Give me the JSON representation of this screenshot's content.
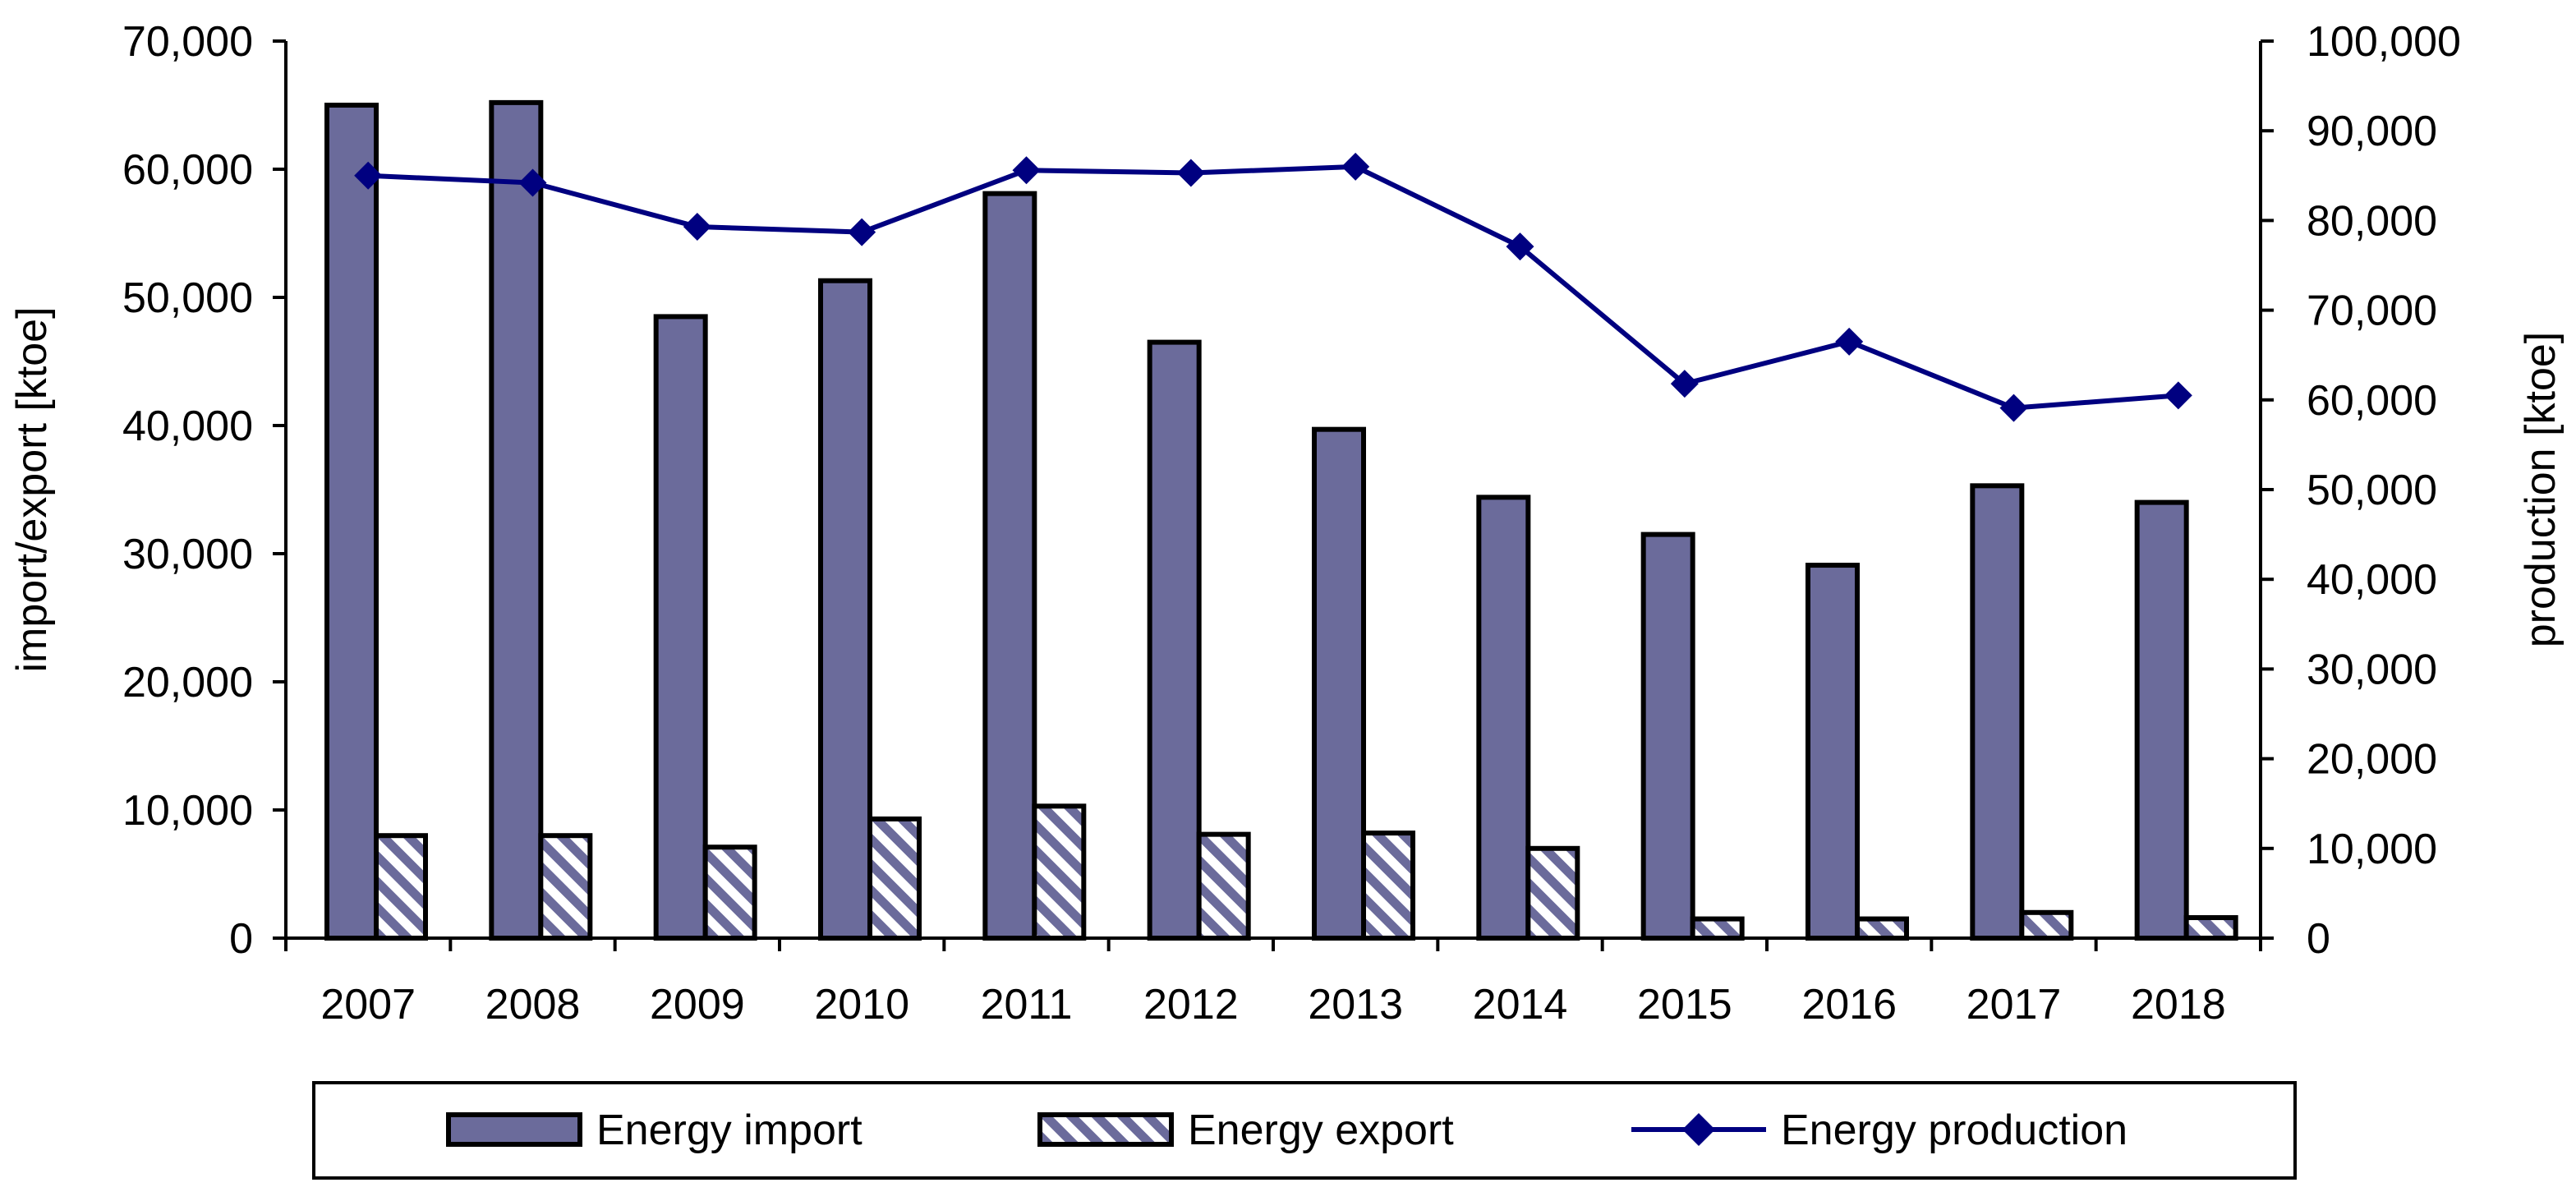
{
  "chart_data": {
    "type": "bar",
    "categories": [
      "2007",
      "2008",
      "2009",
      "2010",
      "2011",
      "2012",
      "2013",
      "2014",
      "2015",
      "2016",
      "2017",
      "2018"
    ],
    "series": [
      {
        "name": "Energy import",
        "kind": "bar",
        "axis": "left",
        "values": [
          65000,
          65200,
          48500,
          51300,
          58100,
          46500,
          39700,
          34400,
          31500,
          29100,
          35300,
          34000
        ]
      },
      {
        "name": "Energy export",
        "kind": "bar",
        "axis": "left",
        "values": [
          8000,
          8000,
          7100,
          9300,
          10300,
          8100,
          8200,
          7000,
          1500,
          1500,
          2000,
          1600
        ]
      },
      {
        "name": "Energy production",
        "kind": "line",
        "axis": "right",
        "values": [
          85000,
          84200,
          79300,
          78700,
          85600,
          85300,
          86000,
          77100,
          61800,
          66500,
          59100,
          60500
        ]
      }
    ],
    "title": "",
    "xlabel": "",
    "ylabel": "import/export [ktoe]",
    "y2label": "production [ktoe]",
    "ylim": [
      0,
      70000
    ],
    "y2lim": [
      0,
      100000
    ],
    "yticks": [
      "0",
      "10,000",
      "20,000",
      "30,000",
      "40,000",
      "50,000",
      "60,000",
      "70,000"
    ],
    "y2ticks": [
      "0",
      "10,000",
      "20,000",
      "30,000",
      "40,000",
      "50,000",
      "60,000",
      "70,000",
      "80,000",
      "90,000",
      "100,000"
    ],
    "grid": false,
    "legend": "bottom",
    "colors": {
      "import": "#6b6b9b",
      "export_stripe": "#6b6b9b",
      "production": "#000080"
    }
  }
}
